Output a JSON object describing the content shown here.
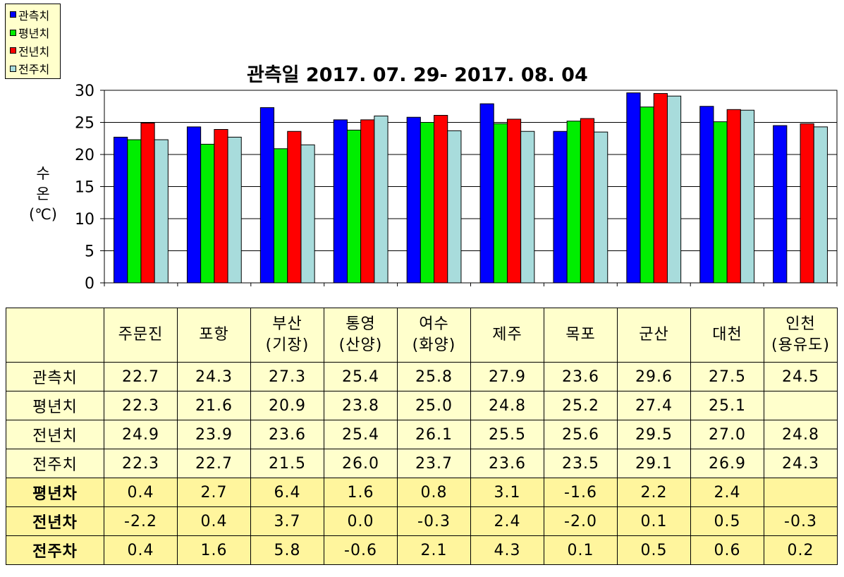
{
  "chart_data": {
    "type": "bar",
    "title": "관측일 2017. 07. 29- 2017. 08. 04",
    "ylabel": [
      "수",
      "온",
      "(℃)"
    ],
    "ylim": [
      0,
      30
    ],
    "yticks": [
      0,
      5,
      10,
      15,
      20,
      25,
      30
    ],
    "grid": true,
    "legend_position": "top-left",
    "categories": [
      "주문진",
      "포항",
      "부산 (기장)",
      "통영 (산양)",
      "여수 (화양)",
      "제주",
      "목포",
      "군산",
      "대천",
      "인천 (용유도)"
    ],
    "series": [
      {
        "name": "관측치",
        "color": "#0000ff",
        "values": [
          22.7,
          24.3,
          27.3,
          25.4,
          25.8,
          27.9,
          23.6,
          29.6,
          27.5,
          24.5
        ]
      },
      {
        "name": "평년치",
        "color": "#00ee00",
        "values": [
          22.3,
          21.6,
          20.9,
          23.8,
          25.0,
          24.8,
          25.2,
          27.4,
          25.1,
          null
        ]
      },
      {
        "name": "전년치",
        "color": "#ff0000",
        "values": [
          24.9,
          23.9,
          23.6,
          25.4,
          26.1,
          25.5,
          25.6,
          29.5,
          27.0,
          24.8
        ]
      },
      {
        "name": "전주치",
        "color": "#a8dcdc",
        "values": [
          22.3,
          22.7,
          21.5,
          26.0,
          23.7,
          23.6,
          23.5,
          29.1,
          26.9,
          24.3
        ]
      }
    ]
  },
  "table": {
    "columns": [
      [
        "주문진"
      ],
      [
        "포항"
      ],
      [
        "부산",
        "(기장)"
      ],
      [
        "통영",
        "(산양)"
      ],
      [
        "여수",
        "(화양)"
      ],
      [
        "제주"
      ],
      [
        "목포"
      ],
      [
        "군산"
      ],
      [
        "대천"
      ],
      [
        "인천",
        "(용유도)"
      ]
    ],
    "rows": [
      {
        "label": "관측치",
        "style": "light",
        "values": [
          "22.7",
          "24.3",
          "27.3",
          "25.4",
          "25.8",
          "27.9",
          "23.6",
          "29.6",
          "27.5",
          "24.5"
        ]
      },
      {
        "label": "평년치",
        "style": "light",
        "values": [
          "22.3",
          "21.6",
          "20.9",
          "23.8",
          "25.0",
          "24.8",
          "25.2",
          "27.4",
          "25.1",
          ""
        ]
      },
      {
        "label": "전년치",
        "style": "light",
        "values": [
          "24.9",
          "23.9",
          "23.6",
          "25.4",
          "26.1",
          "25.5",
          "25.6",
          "29.5",
          "27.0",
          "24.8"
        ]
      },
      {
        "label": "전주치",
        "style": "light",
        "values": [
          "22.3",
          "22.7",
          "21.5",
          "26.0",
          "23.7",
          "23.6",
          "23.5",
          "29.1",
          "26.9",
          "24.3"
        ]
      },
      {
        "label": "평년차",
        "style": "dark",
        "values": [
          "0.4",
          "2.7",
          "6.4",
          "1.6",
          "0.8",
          "3.1",
          "-1.6",
          "2.2",
          "2.4",
          ""
        ]
      },
      {
        "label": "전년차",
        "style": "dark",
        "values": [
          "-2.2",
          "0.4",
          "3.7",
          "0.0",
          "-0.3",
          "2.4",
          "-2.0",
          "0.1",
          "0.5",
          "-0.3"
        ]
      },
      {
        "label": "전주차",
        "style": "dark",
        "values": [
          "0.4",
          "1.6",
          "5.8",
          "-0.6",
          "2.1",
          "4.3",
          "0.1",
          "0.5",
          "0.6",
          "0.2"
        ]
      }
    ]
  }
}
